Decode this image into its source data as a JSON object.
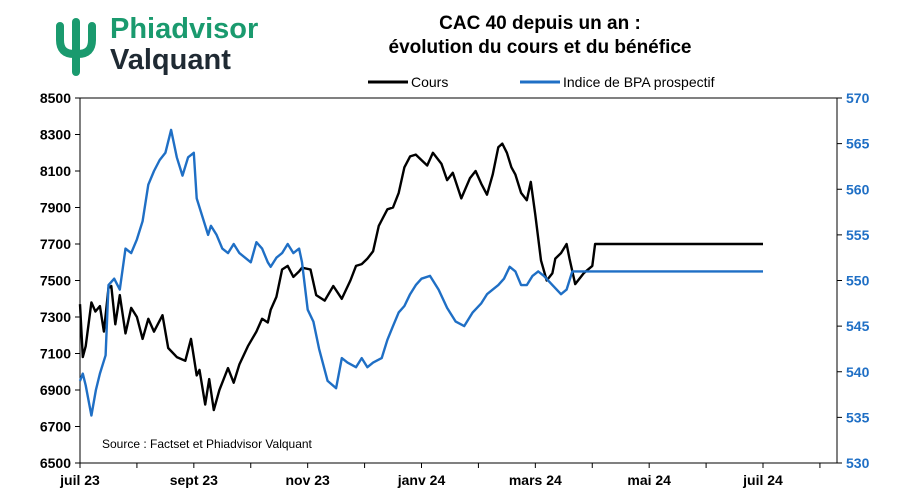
{
  "brand": {
    "line1": "Phiadvisor",
    "line2": "Valquant",
    "green": "#1a9a6e",
    "dark": "#1f2a33"
  },
  "chart_data": {
    "type": "line",
    "title": [
      "CAC 40 depuis un an :",
      "évolution du cours et du bénéfice"
    ],
    "source": "Source : Factset et Phiadvisor Valquant",
    "legend_position": "top",
    "grid": false,
    "x_ticks": [
      "juil 23",
      "sept 23",
      "nov 23",
      "janv 24",
      "mars 24",
      "mai 24",
      "juil 24"
    ],
    "y_left": {
      "lim": [
        6500,
        8500
      ],
      "ticks": [
        6500,
        6700,
        6900,
        7100,
        7300,
        7500,
        7700,
        7900,
        8100,
        8300,
        8500
      ],
      "color": "#000000"
    },
    "y_right": {
      "lim": [
        530,
        570
      ],
      "ticks": [
        530,
        535,
        540,
        545,
        550,
        555,
        560,
        565,
        570
      ],
      "color": "#1f6fc5"
    },
    "series": [
      {
        "name": "Cours",
        "axis": "left",
        "color": "#000000",
        "x": [
          0,
          0.05,
          0.1,
          0.2,
          0.27,
          0.35,
          0.42,
          0.5,
          0.55,
          0.62,
          0.7,
          0.8,
          0.9,
          1.0,
          1.1,
          1.2,
          1.3,
          1.45,
          1.55,
          1.7,
          1.85,
          1.95,
          2.05,
          2.1,
          2.2,
          2.27,
          2.35,
          2.45,
          2.6,
          2.7,
          2.8,
          2.95,
          3.1,
          3.2,
          3.3,
          3.35,
          3.45,
          3.55,
          3.65,
          3.75,
          3.85,
          3.9,
          4.05,
          4.15,
          4.3,
          4.45,
          4.6,
          4.75,
          4.85,
          4.95,
          5.05,
          5.15,
          5.25,
          5.4,
          5.5,
          5.6,
          5.7,
          5.8,
          5.9,
          6.0,
          6.1,
          6.2,
          6.35,
          6.45,
          6.55,
          6.7,
          6.85,
          6.95,
          7.05,
          7.15,
          7.25,
          7.35,
          7.42,
          7.5,
          7.58,
          7.65,
          7.75,
          7.85,
          7.92,
          8.0,
          8.1,
          8.2,
          8.3,
          8.35,
          8.45,
          8.55,
          8.6,
          8.7,
          8.85,
          9.0,
          9.05,
          9.15,
          9.25,
          9.35,
          9.45,
          9.55,
          9.65,
          9.7,
          9.8,
          9.9,
          10.0,
          10.1,
          10.2,
          10.3,
          10.35,
          10.45,
          10.5,
          10.6,
          10.7,
          10.75,
          10.85,
          10.95,
          11.05,
          11.15,
          11.2,
          11.3,
          11.4,
          11.45,
          11.55,
          11.65,
          11.75,
          11.85,
          11.95,
          12.0
        ],
        "values": [
          7370,
          7080,
          7140,
          7380,
          7330,
          7360,
          7220,
          7460,
          7470,
          7260,
          7420,
          7210,
          7350,
          7300,
          7180,
          7290,
          7220,
          7310,
          7130,
          7080,
          7060,
          7180,
          6980,
          7010,
          6820,
          6960,
          6790,
          6900,
          7020,
          6940,
          7040,
          7140,
          7220,
          7290,
          7270,
          7340,
          7410,
          7560,
          7580,
          7520,
          7550,
          7570,
          7560,
          7420,
          7390,
          7470,
          7400,
          7500,
          7580,
          7590,
          7620,
          7660,
          7800,
          7890,
          7900,
          7980,
          8120,
          8180,
          8190,
          8160,
          8130,
          8200,
          8140,
          8050,
          8090,
          7950,
          8060,
          8100,
          8030,
          7970,
          8080,
          8230,
          8250,
          8200,
          8120,
          8080,
          7980,
          7940,
          8040,
          7860,
          7610,
          7500,
          7540,
          7620,
          7650,
          7700,
          7620,
          7480,
          7540,
          7580,
          7700,
          7700,
          7700,
          7700,
          7700,
          7700,
          7700,
          7700,
          7700,
          7700,
          7700,
          7700,
          7700,
          7700,
          7700,
          7700,
          7700,
          7700,
          7700,
          7700,
          7700,
          7700,
          7700,
          7700,
          7700,
          7700,
          7700,
          7700,
          7700,
          7700,
          7700,
          7700,
          7700,
          7700
        ]
      },
      {
        "name": "Indice de BPA prospectif",
        "axis": "right",
        "color": "#1f6fc5",
        "x": [
          0,
          0.05,
          0.1,
          0.2,
          0.28,
          0.35,
          0.45,
          0.5,
          0.6,
          0.7,
          0.8,
          0.9,
          1.0,
          1.1,
          1.2,
          1.3,
          1.4,
          1.5,
          1.6,
          1.7,
          1.8,
          1.9,
          2.0,
          2.05,
          2.15,
          2.25,
          2.3,
          2.4,
          2.5,
          2.6,
          2.7,
          2.8,
          2.9,
          3.0,
          3.1,
          3.2,
          3.3,
          3.35,
          3.45,
          3.55,
          3.65,
          3.75,
          3.85,
          3.9,
          4.0,
          4.1,
          4.2,
          4.35,
          4.5,
          4.6,
          4.7,
          4.85,
          4.95,
          5.05,
          5.15,
          5.3,
          5.4,
          5.5,
          5.6,
          5.7,
          5.8,
          5.9,
          6.0,
          6.15,
          6.3,
          6.45,
          6.6,
          6.75,
          6.9,
          7.05,
          7.15,
          7.25,
          7.35,
          7.45,
          7.55,
          7.65,
          7.75,
          7.85,
          7.95,
          8.05,
          8.15,
          8.3,
          8.45,
          8.55,
          8.65,
          8.75,
          8.85,
          9.0,
          9.15,
          9.3,
          9.45,
          9.55,
          9.65,
          9.75,
          9.85,
          9.95,
          10.05,
          10.15,
          10.25,
          10.35,
          10.45,
          10.55,
          10.65,
          10.75,
          10.85,
          10.95,
          11.05,
          11.15,
          11.25,
          11.35,
          11.45,
          11.55,
          11.65,
          11.75,
          11.85,
          11.95,
          12.0
        ],
        "values": [
          539.0,
          539.8,
          538.5,
          535.2,
          538.0,
          539.8,
          541.8,
          549.5,
          550.2,
          549.0,
          553.5,
          553.0,
          554.5,
          556.5,
          560.5,
          562.0,
          563.2,
          564.0,
          566.5,
          563.5,
          561.5,
          563.5,
          564.0,
          559.0,
          557.0,
          555.0,
          556.0,
          555.0,
          553.5,
          553.0,
          554.0,
          553.0,
          552.5,
          552.0,
          554.2,
          553.5,
          552.0,
          551.5,
          552.5,
          553.0,
          554.0,
          553.0,
          553.5,
          552.0,
          546.8,
          545.5,
          542.5,
          539.0,
          538.2,
          541.5,
          541.0,
          540.5,
          541.5,
          540.5,
          541.0,
          541.5,
          543.5,
          545.0,
          546.5,
          547.2,
          548.5,
          549.5,
          550.2,
          550.5,
          549.0,
          547.0,
          545.5,
          545.0,
          546.5,
          547.5,
          548.5,
          549.0,
          549.5,
          550.2,
          551.5,
          551.0,
          549.5,
          549.5,
          550.5,
          551.0,
          550.5,
          549.5,
          548.5,
          549.0,
          551.0,
          551.0,
          551.0,
          551.0,
          551.0,
          551.0,
          551.0,
          551.0,
          551.0,
          551.0,
          551.0,
          551.0,
          551.0,
          551.0,
          551.0,
          551.0,
          551.0,
          551.0,
          551.0,
          551.0,
          551.0,
          551.0,
          551.0,
          551.0,
          551.0,
          551.0,
          551.0,
          551.0,
          551.0,
          551.0,
          551.0,
          551.0,
          551.0
        ]
      }
    ]
  }
}
